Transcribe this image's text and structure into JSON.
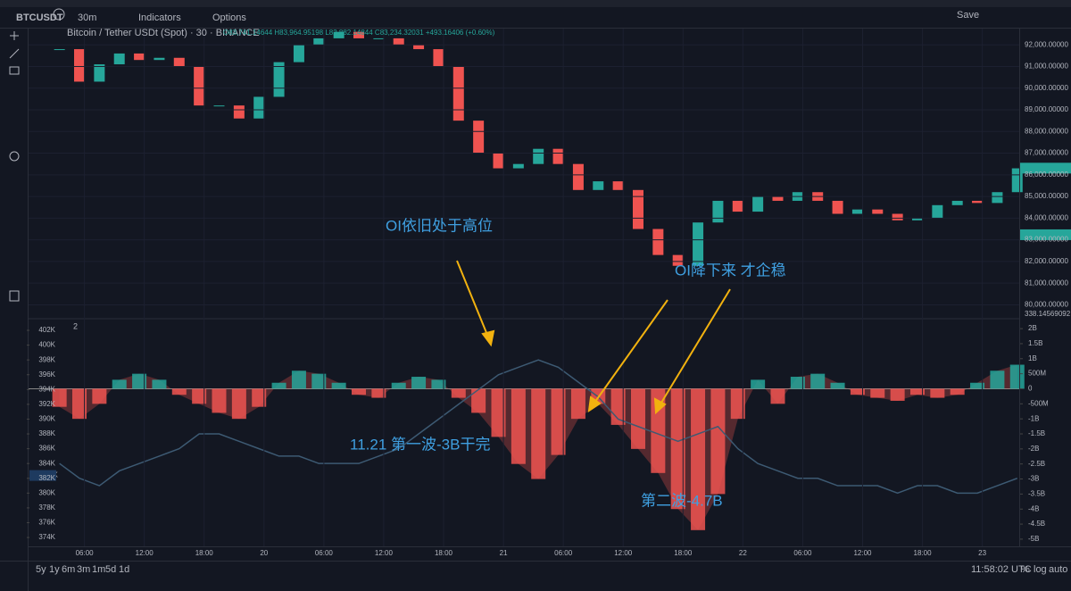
{
  "toolbar": {
    "symbol": "BTCUSDT",
    "interval": "30m",
    "indicators": "Indicators",
    "options": "Options",
    "save": "Save"
  },
  "legend": {
    "title": "Bitcoin / Tether USDt (Spot) · 30 · BINANCE",
    "ohlc": "O83,741.14644 H83,964.95198 L82,882.14844 C83,234.32031 +493.16406 (+0.60%)"
  },
  "panel_label": "2",
  "annotations": [
    "OI依旧处于高位",
    "OI降下来 才企稳",
    "11.21  第一波-3B干完",
    "第二波-4.7B"
  ],
  "bottom": {
    "ranges": [
      "5y",
      "1y",
      "6m",
      "3m",
      "1m",
      "5d",
      "1d"
    ],
    "time": "11:58:02 UTC",
    "percent": "%",
    "log": "log",
    "auto": "auto"
  },
  "chart_data": [
    {
      "type": "candlestick",
      "up_color": "#26a69a",
      "down_color": "#ef5350",
      "x": [
        3.5,
        5.5,
        7.5,
        9.5,
        11.5,
        13.5,
        15.5,
        17.5,
        19.5,
        21.5,
        23.5,
        25.5,
        27.5,
        29.5,
        31.5,
        33.5,
        35.5,
        37.5,
        39.5,
        41.5,
        43.5,
        45.5,
        47.5,
        49.5,
        51.5,
        53.5,
        55.5,
        57.5,
        59.5,
        61.5,
        63.5,
        65.5,
        67.5,
        69.5,
        71.5,
        73.5,
        75.5,
        77.5,
        79.5,
        81.5,
        83.5,
        85.5,
        87.5,
        89.5,
        91.5,
        93.5,
        95.5,
        97.5,
        99.5
      ],
      "values": [
        91800,
        90300,
        91100,
        91600,
        91300,
        91400,
        91000,
        89200,
        89200,
        88600,
        89600,
        91200,
        92000,
        92300,
        92600,
        92300,
        92300,
        92000,
        91800,
        91000,
        88500,
        87000,
        86300,
        86500,
        87200,
        86500,
        85300,
        85700,
        85300,
        83500,
        82300,
        81800,
        83800,
        84800,
        84300,
        85000,
        84800,
        85200,
        84800,
        84200,
        84400,
        84200,
        83900,
        84000,
        84600,
        84800,
        84700,
        85200,
        86300
      ],
      "xlim": [
        0.4,
        99.7
      ],
      "ylim": [
        79400,
        92750
      ],
      "xticks": [
        {
          "value": 6,
          "label": "06:00"
        },
        {
          "value": 12,
          "label": "12:00"
        },
        {
          "value": 18,
          "label": "18:00"
        },
        {
          "value": 24,
          "label": "20"
        },
        {
          "value": 30,
          "label": "06:00"
        },
        {
          "value": 36,
          "label": "12:00"
        },
        {
          "value": 42,
          "label": "18:00"
        },
        {
          "value": 48,
          "label": "21"
        },
        {
          "value": 54,
          "label": "06:00"
        },
        {
          "value": 60,
          "label": "12:00"
        },
        {
          "value": 66,
          "label": "18:00"
        },
        {
          "value": 72,
          "label": "22"
        },
        {
          "value": 78,
          "label": "06:00"
        },
        {
          "value": 84,
          "label": "12:00"
        },
        {
          "value": 90,
          "label": "18:00"
        },
        {
          "value": 96,
          "label": "23"
        }
      ],
      "yticks": [
        {
          "value": 92000,
          "label": "92,000.00000"
        },
        {
          "value": 91000,
          "label": "91,000.00000"
        },
        {
          "value": 90000,
          "label": "90,000.00000"
        },
        {
          "value": 89000,
          "label": "89,000.00000"
        },
        {
          "value": 88000,
          "label": "88,000.00000"
        },
        {
          "value": 87000,
          "label": "87,000.00000"
        },
        {
          "value": 86000,
          "label": "86,000.00000"
        },
        {
          "value": 85000,
          "label": "85,000.00000"
        },
        {
          "value": 84000,
          "label": "84,000.00000"
        },
        {
          "value": 83000,
          "label": "83,000.00000"
        },
        {
          "value": 82000,
          "label": "82,000.00000"
        },
        {
          "value": 81000,
          "label": "81,000.00000"
        },
        {
          "value": 80000,
          "label": "80,000.00000"
        }
      ],
      "price_labels": [
        {
          "value": 86308.53906,
          "label": "86,308.53906",
          "color": "#26a69a"
        },
        {
          "value": 83234.32031,
          "label": "83,234.32031",
          "color": "#26a69a"
        }
      ],
      "volume_label": "338.14569092"
    },
    {
      "type": "oi-flow",
      "ylim": [
        372.8,
        403.45
      ],
      "y2lim": [
        -5.24,
        2.3
      ],
      "yticks": [
        {
          "value": 402,
          "label": "402K"
        },
        {
          "value": 400,
          "label": "400K"
        },
        {
          "value": 398,
          "label": "398K"
        },
        {
          "value": 396,
          "label": "396K"
        },
        {
          "value": 394,
          "label": "394K"
        },
        {
          "value": 392,
          "label": "392K"
        },
        {
          "value": 390,
          "label": "390K"
        },
        {
          "value": 388,
          "label": "388K"
        },
        {
          "value": 386,
          "label": "386K"
        },
        {
          "value": 384,
          "label": "384K"
        },
        {
          "value": 382,
          "label": "382K"
        },
        {
          "value": 380,
          "label": "380K"
        },
        {
          "value": 378,
          "label": "378K"
        },
        {
          "value": 376,
          "label": "376K"
        },
        {
          "value": 374,
          "label": "374K"
        }
      ],
      "y2ticks": [
        {
          "value": 2,
          "label": "2B"
        },
        {
          "value": 1.5,
          "label": "1.5B"
        },
        {
          "value": 1,
          "label": "1B"
        },
        {
          "value": 0.5,
          "label": "500M"
        },
        0,
        {
          "value": -0.5,
          "label": "-500M"
        },
        {
          "value": -1,
          "label": "-1B"
        },
        {
          "value": -1.5,
          "label": "-1.5B"
        },
        {
          "value": -2,
          "label": "-2B"
        },
        {
          "value": -2.5,
          "label": "-2.5B"
        },
        {
          "value": -3,
          "label": "-3B"
        },
        {
          "value": -3.5,
          "label": "-3.5B"
        },
        {
          "value": -4,
          "label": "-4B"
        },
        {
          "value": -4.5,
          "label": "-4.5B"
        },
        {
          "value": -5,
          "label": "-5B"
        }
      ],
      "series": [
        {
          "color": "#3d5a73",
          "values": [
            384,
            382,
            381,
            383,
            384,
            385,
            386,
            388,
            388,
            387,
            386,
            385,
            385,
            384,
            384,
            384,
            385,
            386,
            388,
            390,
            392,
            394,
            396,
            397,
            398,
            397,
            395,
            393,
            390,
            389,
            388,
            387,
            388,
            389,
            386,
            384,
            383,
            382,
            382,
            381,
            381,
            381,
            380,
            381,
            381,
            380,
            380,
            381,
            382
          ]
        },
        {
          "axis": "y2",
          "color": "#ef5350",
          "pos_color": "#26a69a",
          "values": [
            -0.6,
            -1.0,
            -0.5,
            0.3,
            0.5,
            0.3,
            -0.2,
            -0.5,
            -0.8,
            -1.0,
            -0.6,
            0.2,
            0.6,
            0.5,
            0.2,
            -0.2,
            -0.3,
            0.2,
            0.4,
            0.3,
            -0.3,
            -0.8,
            -1.6,
            -2.5,
            -3.0,
            -2.2,
            -1.0,
            -0.5,
            -1.2,
            -2.0,
            -2.8,
            -4.0,
            -4.7,
            -3.5,
            -1.0,
            0.3,
            -0.5,
            0.4,
            0.5,
            0.2,
            -0.2,
            -0.3,
            -0.4,
            -0.2,
            -0.3,
            -0.2,
            0.2,
            0.6,
            0.8
          ]
        }
      ],
      "current": {
        "value": 382.38,
        "label": "382.38K"
      }
    }
  ]
}
